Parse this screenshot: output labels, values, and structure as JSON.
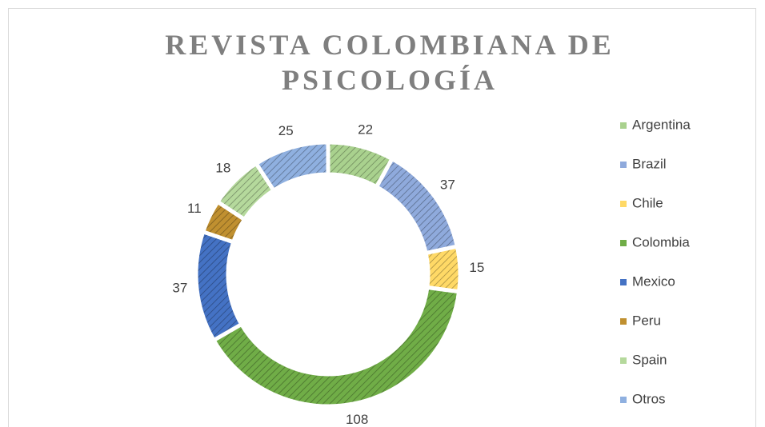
{
  "chart_data": {
    "type": "donut",
    "title": "REVISTA COLOMBIANA DE PSICOLOGÍA",
    "categories": [
      "Argentina",
      "Brazil",
      "Chile",
      "Colombia",
      "Mexico",
      "Peru",
      "Spain",
      "Otros"
    ],
    "values": [
      22,
      37,
      15,
      108,
      37,
      11,
      18,
      25
    ],
    "colors": [
      "#a9d18e",
      "#8faadc",
      "#ffd966",
      "#70ad47",
      "#4472c4",
      "#c09030",
      "#b5d99c",
      "#8fb0e0"
    ],
    "hatched": true,
    "legend": "right"
  }
}
